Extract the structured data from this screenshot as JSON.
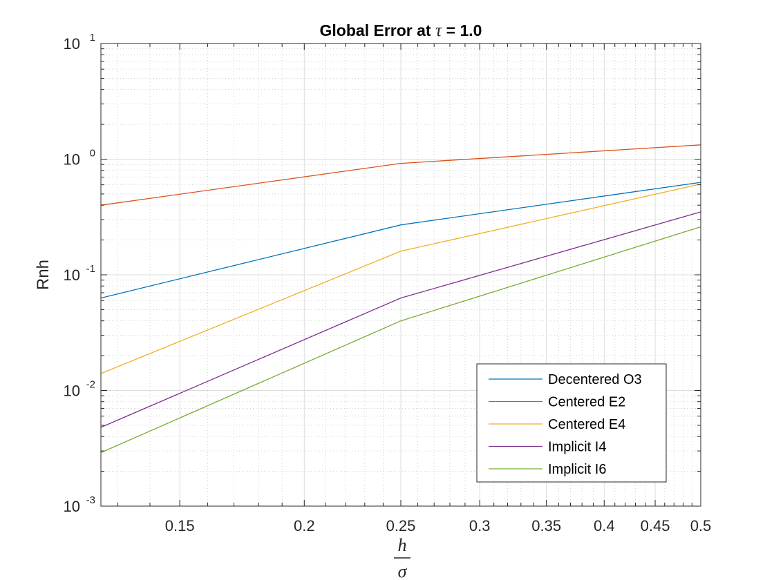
{
  "chart_data": {
    "type": "line",
    "title_prefix": "Global Error at ",
    "title_symbol": "τ",
    "title_suffix": " = 1.0",
    "xlabel_numerator": "h",
    "xlabel_denominator": "σ",
    "ylabel": "Rnh",
    "xscale": "log",
    "yscale": "log",
    "xlim": [
      0.125,
      0.5
    ],
    "ylim": [
      0.001,
      10
    ],
    "grid": true,
    "minor_grid": true,
    "legend_position": "bottom-right",
    "x_ticks": [
      {
        "value": 0.15,
        "label": "0.15"
      },
      {
        "value": 0.2,
        "label": "0.2"
      },
      {
        "value": 0.25,
        "label": "0.25"
      },
      {
        "value": 0.3,
        "label": "0.3"
      },
      {
        "value": 0.35,
        "label": "0.35"
      },
      {
        "value": 0.4,
        "label": "0.4"
      },
      {
        "value": 0.45,
        "label": "0.45"
      },
      {
        "value": 0.5,
        "label": "0.5"
      }
    ],
    "y_ticks": [
      {
        "value": 0.001,
        "base": "10",
        "exp": "-3"
      },
      {
        "value": 0.01,
        "base": "10",
        "exp": "-2"
      },
      {
        "value": 0.1,
        "base": "10",
        "exp": "-1"
      },
      {
        "value": 1,
        "base": "10",
        "exp": "0"
      },
      {
        "value": 10,
        "base": "10",
        "exp": "1"
      }
    ],
    "x": [
      0.125,
      0.25,
      0.5
    ],
    "series": [
      {
        "name": "Decentered O3",
        "color": "#0072BD",
        "values": [
          0.063,
          0.27,
          0.63
        ]
      },
      {
        "name": "Centered E2",
        "color": "#D95319",
        "values": [
          0.4,
          0.92,
          1.33
        ]
      },
      {
        "name": "Centered E4",
        "color": "#EDB120",
        "values": [
          0.014,
          0.16,
          0.61
        ]
      },
      {
        "name": "Implicit I4",
        "color": "#7E2F8E",
        "values": [
          0.0048,
          0.063,
          0.35
        ]
      },
      {
        "name": "Implicit I6",
        "color": "#77AC30",
        "values": [
          0.0029,
          0.04,
          0.26
        ]
      }
    ]
  }
}
